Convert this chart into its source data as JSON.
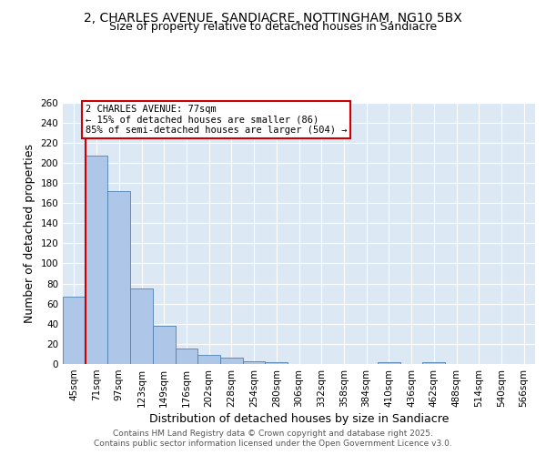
{
  "title_line1": "2, CHARLES AVENUE, SANDIACRE, NOTTINGHAM, NG10 5BX",
  "title_line2": "Size of property relative to detached houses in Sandiacre",
  "xlabel": "Distribution of detached houses by size in Sandiacre",
  "ylabel": "Number of detached properties",
  "categories": [
    "45sqm",
    "71sqm",
    "97sqm",
    "123sqm",
    "149sqm",
    "176sqm",
    "202sqm",
    "228sqm",
    "254sqm",
    "280sqm",
    "306sqm",
    "332sqm",
    "358sqm",
    "384sqm",
    "410sqm",
    "436sqm",
    "462sqm",
    "488sqm",
    "514sqm",
    "540sqm",
    "566sqm"
  ],
  "values": [
    67,
    207,
    172,
    75,
    38,
    15,
    9,
    6,
    3,
    2,
    0,
    0,
    0,
    0,
    2,
    0,
    2,
    0,
    0,
    0,
    0
  ],
  "bar_color": "#aec6e8",
  "bar_edge_color": "#5080b0",
  "background_color": "#dce9f5",
  "grid_color": "#ffffff",
  "vline_x": 0.5,
  "vline_color": "#cc0000",
  "annotation_text": "2 CHARLES AVENUE: 77sqm\n← 15% of detached houses are smaller (86)\n85% of semi-detached houses are larger (504) →",
  "annotation_box_color": "#ffffff",
  "annotation_box_edge": "#cc0000",
  "ylim": [
    0,
    260
  ],
  "yticks": [
    0,
    20,
    40,
    60,
    80,
    100,
    120,
    140,
    160,
    180,
    200,
    220,
    240,
    260
  ],
  "footer_line1": "Contains HM Land Registry data © Crown copyright and database right 2025.",
  "footer_line2": "Contains public sector information licensed under the Open Government Licence v3.0.",
  "title_fontsize": 10,
  "subtitle_fontsize": 9,
  "axis_label_fontsize": 9,
  "tick_fontsize": 7.5,
  "annotation_fontsize": 7.5,
  "footer_fontsize": 6.5
}
